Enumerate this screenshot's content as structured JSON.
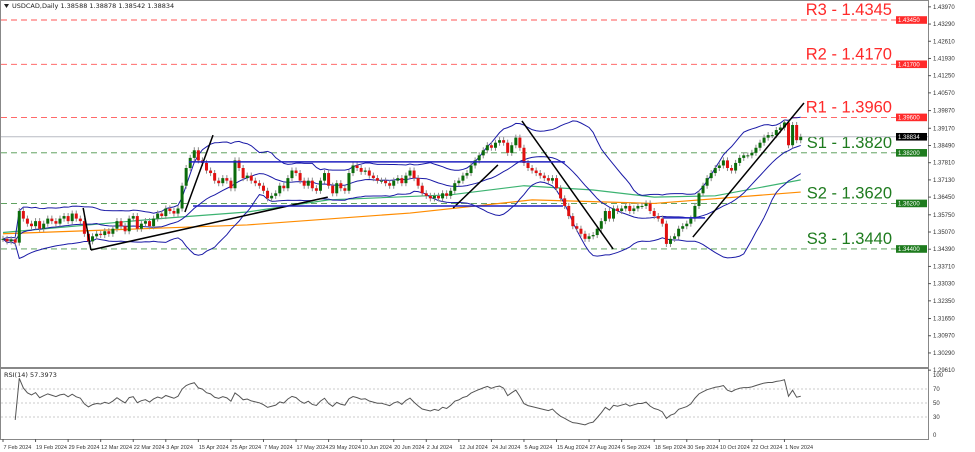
{
  "header": {
    "symbol_info": "USDCAD,Daily  1.38588 1.38878 1.38542 1.38834"
  },
  "rsi_header": "RSI(14) 57.3973",
  "colors": {
    "resistance": "#ff2a2a",
    "support": "#1e7b1e",
    "bollinger": "#1a1aa6",
    "ma_fast": "#3cb371",
    "ma_slow": "#ff8c00",
    "bull_candle": "#0b6b0b",
    "bear_candle": "#e01010",
    "trendline": "#000000",
    "current_price": "#000000"
  },
  "chart_data": [
    {
      "type": "candlestick",
      "title": "USDCAD,Daily",
      "last_quote": {
        "open": 1.38588,
        "high": 1.38878,
        "low": 1.38542,
        "close": 1.38834
      },
      "y_ticks": [
        "1.43970",
        "1.43290",
        "1.42610",
        "1.41930",
        "1.41250",
        "1.40570",
        "1.39870",
        "1.39170",
        "1.38490",
        "1.37810",
        "1.37130",
        "1.36450",
        "1.35750",
        "1.35070",
        "1.34390",
        "1.33710",
        "1.33030",
        "1.32350",
        "1.31650",
        "1.30970",
        "1.30290",
        "1.29610"
      ],
      "ylim": [
        1.2961,
        1.4397
      ],
      "x_ticks": [
        {
          "index": 0,
          "label": "7 Feb 2024"
        },
        {
          "index": 8,
          "label": "19 Feb 2024"
        },
        {
          "index": 16,
          "label": "29 Feb 2024"
        },
        {
          "index": 24,
          "label": "12 Mar 2024"
        },
        {
          "index": 32,
          "label": "22 Mar 2024"
        },
        {
          "index": 40,
          "label": "3 Apr 2024"
        },
        {
          "index": 48,
          "label": "15 Apr 2024"
        },
        {
          "index": 56,
          "label": "25 Apr 2024"
        },
        {
          "index": 64,
          "label": "7 May 2024"
        },
        {
          "index": 72,
          "label": "17 May 2024"
        },
        {
          "index": 80,
          "label": "29 May 2024"
        },
        {
          "index": 88,
          "label": "10 Jun 2024"
        },
        {
          "index": 96,
          "label": "20 Jun 2024"
        },
        {
          "index": 104,
          "label": "2 Jul 2024"
        },
        {
          "index": 112,
          "label": "12 Jul 2024"
        },
        {
          "index": 120,
          "label": "24 Jul 2024"
        },
        {
          "index": 128,
          "label": "5 Aug 2024"
        },
        {
          "index": 136,
          "label": "15 Aug 2024"
        },
        {
          "index": 144,
          "label": "27 Aug 2024"
        },
        {
          "index": 152,
          "label": "6 Sep 2024"
        },
        {
          "index": 160,
          "label": "18 Sep 2024"
        },
        {
          "index": 168,
          "label": "30 Sep 2024"
        },
        {
          "index": 176,
          "label": "10 Oct 2024"
        },
        {
          "index": 184,
          "label": "22 Oct 2024"
        },
        {
          "index": 192,
          "label": "1 Nov 2024"
        }
      ],
      "closes": [
        1.348,
        1.347,
        1.3478,
        1.3465,
        1.359,
        1.356,
        1.354,
        1.353,
        1.355,
        1.352,
        1.354,
        1.356,
        1.355,
        1.354,
        1.356,
        1.357,
        1.355,
        1.358,
        1.356,
        1.355,
        1.35,
        1.347,
        1.349,
        1.35,
        1.3495,
        1.351,
        1.35,
        1.352,
        1.355,
        1.353,
        1.351,
        1.356,
        1.357,
        1.352,
        1.354,
        1.355,
        1.353,
        1.356,
        1.358,
        1.357,
        1.36,
        1.359,
        1.358,
        1.36,
        1.369,
        1.376,
        1.38,
        1.383,
        1.379,
        1.378,
        1.375,
        1.374,
        1.371,
        1.37,
        1.372,
        1.371,
        1.368,
        1.379,
        1.376,
        1.372,
        1.373,
        1.371,
        1.37,
        1.369,
        1.367,
        1.364,
        1.365,
        1.366,
        1.369,
        1.368,
        1.372,
        1.375,
        1.374,
        1.371,
        1.369,
        1.371,
        1.368,
        1.367,
        1.371,
        1.374,
        1.369,
        1.366,
        1.37,
        1.368,
        1.367,
        1.374,
        1.377,
        1.376,
        1.3745,
        1.375,
        1.373,
        1.372,
        1.371,
        1.371,
        1.37,
        1.369,
        1.371,
        1.372,
        1.37,
        1.373,
        1.375,
        1.372,
        1.369,
        1.366,
        1.365,
        1.364,
        1.365,
        1.364,
        1.366,
        1.365,
        1.367,
        1.37,
        1.371,
        1.373,
        1.374,
        1.377,
        1.379,
        1.381,
        1.383,
        1.385,
        1.384,
        1.386,
        1.387,
        1.386,
        1.382,
        1.385,
        1.388,
        1.384,
        1.378,
        1.376,
        1.375,
        1.374,
        1.373,
        1.372,
        1.371,
        1.372,
        1.368,
        1.364,
        1.361,
        1.357,
        1.353,
        1.352,
        1.35,
        1.348,
        1.349,
        1.3495,
        1.352,
        1.355,
        1.359,
        1.356,
        1.36,
        1.359,
        1.36,
        1.361,
        1.359,
        1.36,
        1.361,
        1.361,
        1.362,
        1.359,
        1.357,
        1.356,
        1.354,
        1.346,
        1.348,
        1.349,
        1.352,
        1.353,
        1.354,
        1.356,
        1.361,
        1.366,
        1.369,
        1.372,
        1.374,
        1.376,
        1.377,
        1.379,
        1.376,
        1.375,
        1.378,
        1.38,
        1.381,
        1.381,
        1.382,
        1.384,
        1.386,
        1.388,
        1.389,
        1.389,
        1.391,
        1.392,
        1.394,
        1.385,
        1.393,
        1.387,
        1.38834
      ],
      "ma_green": [
        {
          "index": 0,
          "value": 1.3505
        },
        {
          "index": 40,
          "value": 1.3562
        },
        {
          "index": 60,
          "value": 1.3586
        },
        {
          "index": 80,
          "value": 1.3634
        },
        {
          "index": 110,
          "value": 1.3654
        },
        {
          "index": 128,
          "value": 1.369
        },
        {
          "index": 145,
          "value": 1.3673
        },
        {
          "index": 160,
          "value": 1.3645
        },
        {
          "index": 175,
          "value": 1.365
        },
        {
          "index": 196,
          "value": 1.3713
        }
      ],
      "ma_orange": [
        {
          "index": 0,
          "value": 1.35
        },
        {
          "index": 60,
          "value": 1.3535
        },
        {
          "index": 100,
          "value": 1.3582
        },
        {
          "index": 130,
          "value": 1.3634
        },
        {
          "index": 160,
          "value": 1.362
        },
        {
          "index": 196,
          "value": 1.3665
        }
      ],
      "bollinger": {
        "period": 20,
        "deviations": 2
      },
      "trendlines": [
        {
          "from": {
            "index": 21.6,
            "price": 1.3436
          },
          "to": {
            "index": 79.8,
            "price": 1.3645
          }
        },
        {
          "from": {
            "index": 19.7,
            "price": 1.3602
          },
          "to": {
            "index": 21.6,
            "price": 1.3436
          }
        },
        {
          "from": {
            "index": 44.7,
            "price": 1.3586
          },
          "to": {
            "index": 51.6,
            "price": 1.389
          }
        },
        {
          "from": {
            "index": 110.6,
            "price": 1.3602
          },
          "to": {
            "index": 121.6,
            "price": 1.3772
          }
        },
        {
          "from": {
            "index": 127.5,
            "price": 1.3946
          },
          "to": {
            "index": 149.9,
            "price": 1.344
          }
        },
        {
          "from": {
            "index": 169.5,
            "price": 1.3487
          },
          "to": {
            "index": 196.8,
            "price": 1.4017
          }
        }
      ],
      "horizontal_lines": [
        {
          "from_index": 45.7,
          "to_index": 138.1,
          "price": 1.3784
        },
        {
          "from_index": 46.7,
          "to_index": 137.6,
          "price": 1.361
        },
        {
          "from_index": 162.2,
          "to_index": 172.5,
          "price": 1.3563
        }
      ],
      "levels": [
        {
          "name": "R3",
          "label": "R3 - 1.4345",
          "price": 1.4345,
          "axis_label": "1.43450",
          "kind": "resistance"
        },
        {
          "name": "R2",
          "label": "R2 - 1.4170",
          "price": 1.417,
          "axis_label": "1.41700",
          "kind": "resistance"
        },
        {
          "name": "R1",
          "label": "R1 - 1.3960",
          "price": 1.396,
          "axis_label": "1.39600",
          "kind": "resistance"
        },
        {
          "name": "S1",
          "label": "S1 - 1.3820",
          "price": 1.382,
          "axis_label": "1.38200",
          "kind": "support"
        },
        {
          "name": "S2",
          "label": "S2 - 1.3620",
          "price": 1.362,
          "axis_label": "1.36200",
          "kind": "support"
        },
        {
          "name": "S3",
          "label": "S3 - 1.3440",
          "price": 1.344,
          "axis_label": "1.34400",
          "kind": "support"
        }
      ],
      "current_price": {
        "price": 1.38834,
        "axis_label": "1.38834"
      }
    },
    {
      "type": "line",
      "title": "RSI(14) 57.3973",
      "period": 14,
      "last_value": 57.3973,
      "ylim": [
        0,
        100
      ],
      "y_ticks": [
        "100",
        "70",
        "50",
        "30",
        "0"
      ],
      "levels": [
        70,
        50,
        30
      ]
    }
  ]
}
